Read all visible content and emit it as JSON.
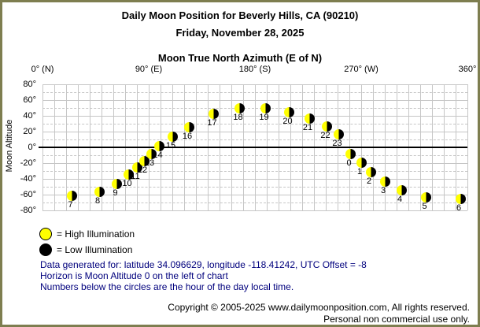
{
  "header": {
    "title": "Daily Moon Position for Beverly Hills, CA (90210)",
    "date": "Friday, November 28, 2025"
  },
  "chart_data": {
    "type": "scatter",
    "title": "Daily Moon Position for Beverly Hills, CA (90210)",
    "subtitle": "Friday, November 28, 2025",
    "xlabel": "Moon True North Azimuth (E of N)",
    "ylabel": "Moon Altitude",
    "xlim": [
      0,
      360
    ],
    "ylim": [
      -80,
      80
    ],
    "x_grid_step": 10,
    "y_grid_step": 10,
    "x_ticks": [
      {
        "value": 0,
        "label": "0° (N)"
      },
      {
        "value": 90,
        "label": "90° (E)"
      },
      {
        "value": 180,
        "label": "180° (S)"
      },
      {
        "value": 270,
        "label": "270° (W)"
      },
      {
        "value": 360,
        "label": "360°"
      }
    ],
    "y_ticks": [
      {
        "value": 80,
        "label": "80°"
      },
      {
        "value": 60,
        "label": "60°"
      },
      {
        "value": 40,
        "label": "40°"
      },
      {
        "value": 20,
        "label": "20°"
      },
      {
        "value": 0,
        "label": "0°"
      },
      {
        "value": -20,
        "label": "-20°"
      },
      {
        "value": -40,
        "label": "-40°"
      },
      {
        "value": -60,
        "label": "-60°"
      },
      {
        "value": -80,
        "label": "-80°"
      }
    ],
    "points": [
      {
        "hour": 7,
        "azimuth": 25,
        "altitude": -61
      },
      {
        "hour": 8,
        "azimuth": 48,
        "altitude": -56
      },
      {
        "hour": 9,
        "azimuth": 63,
        "altitude": -46
      },
      {
        "hour": 10,
        "azimuth": 73,
        "altitude": -34
      },
      {
        "hour": 11,
        "azimuth": 80,
        "altitude": -25
      },
      {
        "hour": 12,
        "azimuth": 86,
        "altitude": -17
      },
      {
        "hour": 13,
        "azimuth": 92,
        "altitude": -8
      },
      {
        "hour": 14,
        "azimuth": 99,
        "altitude": 2
      },
      {
        "hour": 15,
        "azimuth": 110,
        "altitude": 14
      },
      {
        "hour": 16,
        "azimuth": 124,
        "altitude": 26
      },
      {
        "hour": 17,
        "azimuth": 145,
        "altitude": 43
      },
      {
        "hour": 18,
        "azimuth": 167,
        "altitude": 50
      },
      {
        "hour": 19,
        "azimuth": 189,
        "altitude": 50
      },
      {
        "hour": 20,
        "azimuth": 209,
        "altitude": 45
      },
      {
        "hour": 21,
        "azimuth": 226,
        "altitude": 37
      },
      {
        "hour": 22,
        "azimuth": 241,
        "altitude": 27
      },
      {
        "hour": 23,
        "azimuth": 251,
        "altitude": 17
      },
      {
        "hour": 0,
        "azimuth": 261,
        "altitude": -8
      },
      {
        "hour": 1,
        "azimuth": 270,
        "altitude": -19
      },
      {
        "hour": 2,
        "azimuth": 278,
        "altitude": -31
      },
      {
        "hour": 3,
        "azimuth": 290,
        "altitude": -43
      },
      {
        "hour": 4,
        "azimuth": 304,
        "altitude": -54
      },
      {
        "hour": 5,
        "azimuth": 325,
        "altitude": -63
      },
      {
        "hour": 6,
        "azimuth": 354,
        "altitude": -65
      }
    ],
    "marker": {
      "high_color": "#FFFF00",
      "low_color": "#000000",
      "split_pct": 50
    },
    "grid": true,
    "legend_position": "below-left"
  },
  "legend": [
    {
      "type": "high",
      "color": "#FFFF00",
      "label": "= High Illumination"
    },
    {
      "type": "low",
      "color": "#000000",
      "label": "= Low Illumination"
    }
  ],
  "notes": [
    "Data generated for: latitude 34.096629, longitude -118.41242, UTC Offset = -8",
    "Horizon is Moon Altitude 0 on the left of chart",
    "Numbers below the circles are the hour of the day local time."
  ],
  "footer": {
    "line1": "Copyright © 2005-2025 www.dailymoonposition.com, All rights reserved.",
    "line2": "Personal non commercial use only."
  },
  "colors": {
    "border": "#7E7E50",
    "grid": "#C6C6C6",
    "zero_line": "#000000",
    "note_text": "#00007D",
    "high_illumination": "#FFFF00",
    "low_illumination": "#000000"
  }
}
